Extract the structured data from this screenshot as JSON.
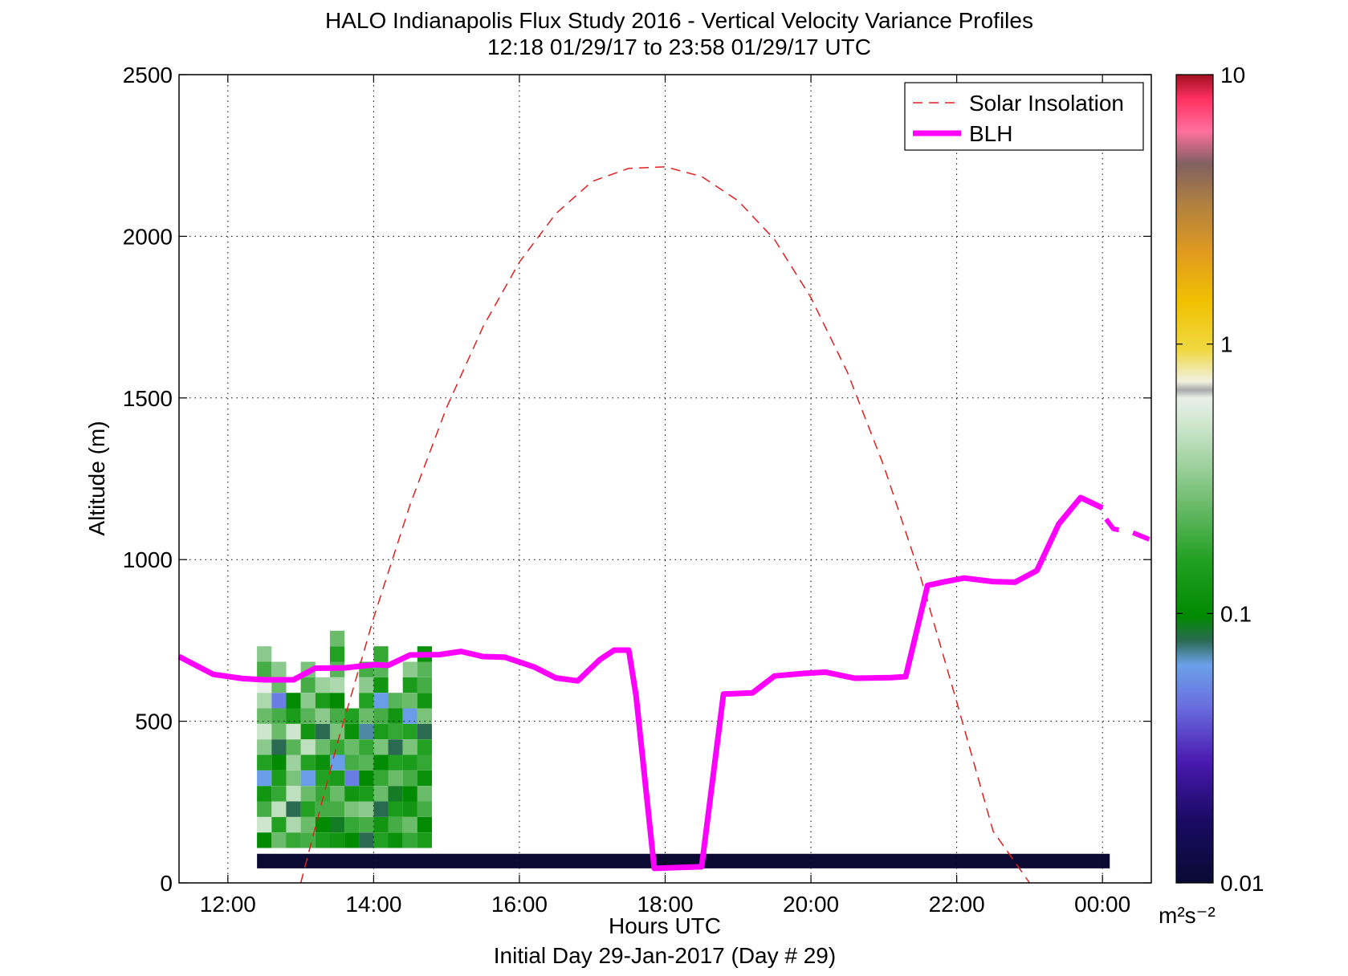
{
  "chart_data": {
    "type": "heatmap",
    "title_line1": "HALO Indianapolis Flux Study 2016 - Vertical Velocity Variance Profiles",
    "title_line2": "12:18 01/29/17 to 23:58 01/29/17  UTC",
    "xlabel": "Hours UTC",
    "xlabel2": "Initial Day 29-Jan-2017 (Day # 29)",
    "ylabel": "Altitude (m)",
    "x_ticks": [
      "12:00",
      "14:00",
      "16:00",
      "18:00",
      "20:00",
      "22:00",
      "00:00"
    ],
    "x_tick_hours": [
      12,
      14,
      16,
      18,
      20,
      22,
      24
    ],
    "xlim_hours": [
      11.33,
      24.67
    ],
    "y_ticks": [
      "0",
      "500",
      "1000",
      "1500",
      "2000",
      "2500"
    ],
    "y_tick_values": [
      0,
      500,
      1000,
      1500,
      2000,
      2500
    ],
    "ylim": [
      0,
      2500
    ],
    "grid": true,
    "legend_position": "top-right",
    "legend": [
      {
        "name": "Solar Insolation",
        "style": "dashed",
        "color": "#e02020"
      },
      {
        "name": "BLH",
        "style": "solid",
        "color": "#ff00ff"
      }
    ],
    "colorbar": {
      "scale": "log",
      "range": [
        0.01,
        10
      ],
      "tick_labels": [
        "10",
        "1",
        "0.1",
        "0.01"
      ],
      "tick_values": [
        10,
        1,
        0.1,
        0.01
      ],
      "unit": "m²s⁻²"
    },
    "variance_grid": {
      "first_column_hour": 12.5,
      "column_step_hours": 0.2,
      "first_row_altitude_m": 108,
      "row_step_m": 48,
      "log10_values": [
        [
          -1.0,
          -0.3,
          -0.7,
          -0.9,
          -1.2,
          -0.8,
          -0.5,
          -0.3,
          -0.6,
          -0.4,
          -0.2,
          -0.7,
          -0.5
        ],
        [
          -0.6,
          -0.8,
          -0.35,
          -0.75,
          -0.85,
          -1.0,
          -1.1,
          -0.6,
          -0.7,
          -1.3,
          -0.6,
          -0.5
        ],
        [
          -0.75,
          -0.4,
          -1.1,
          -0.35,
          -0.55,
          -0.45,
          -0.65,
          -0.3,
          -0.85,
          -1.0
        ],
        [
          -0.7,
          -0.6,
          -0.8,
          -0.6,
          -1.2,
          -0.8,
          -0.35,
          -0.9,
          -0.65,
          -0.5,
          -0.7,
          -0.55
        ],
        [
          -0.85,
          -1.0,
          -0.7,
          -0.75,
          -0.8,
          -0.95,
          -0.6,
          -1.1,
          -0.5,
          -0.85,
          -0.45
        ],
        [
          -0.9,
          -1.05,
          -0.7,
          -0.6,
          -0.85,
          -1.2,
          -0.75,
          -0.55,
          -0.7,
          -1.0,
          -0.4,
          -0.65,
          -0.8,
          -0.6
        ],
        [
          -1.0,
          -0.75,
          -0.55,
          -0.9,
          -1.3,
          -0.7,
          -0.6,
          -0.95,
          -0.8
        ],
        [
          -1.1,
          -0.7,
          -0.5,
          -0.85,
          -1.0,
          -0.65,
          -0.75,
          -1.15,
          -0.6,
          -0.8,
          -0.5,
          -0.7
        ],
        [
          -0.8,
          -0.9,
          -1.1,
          -0.6,
          -0.75,
          -1.0,
          -0.55,
          -0.85,
          -0.7,
          -1.2,
          -0.9,
          -0.65,
          -0.75
        ],
        [
          -0.95,
          -0.7,
          -0.85,
          -1.05,
          -0.6,
          -0.8,
          -1.1,
          -0.75,
          -0.9,
          -0.65
        ],
        [
          -0.75,
          -0.6,
          -0.9,
          -1.0,
          -0.7,
          -0.85,
          -0.55,
          -0.8,
          -1.2,
          -0.6,
          -0.85,
          -0.5
        ],
        [
          -0.85,
          -1.0,
          -0.7,
          -0.6,
          -0.95,
          -0.75,
          -0.8,
          -1.1,
          -0.55,
          -0.9,
          -0.7,
          -0.65,
          -0.95
        ]
      ]
    },
    "solar_insolation": {
      "x_hours": [
        13.0,
        13.5,
        14.0,
        14.5,
        15.0,
        15.5,
        16.0,
        16.5,
        17.0,
        17.5,
        18.0,
        18.5,
        19.0,
        19.5,
        20.0,
        20.5,
        21.0,
        21.5,
        22.0,
        22.5,
        23.0
      ],
      "y_altitude_m": [
        0,
        430,
        820,
        1170,
        1470,
        1720,
        1920,
        2070,
        2170,
        2210,
        2215,
        2185,
        2110,
        1990,
        1810,
        1580,
        1290,
        950,
        560,
        160,
        0
      ]
    },
    "blh": {
      "x_hours": [
        11.33,
        11.8,
        12.2,
        12.5,
        12.9,
        13.2,
        13.6,
        14.0,
        14.2,
        14.5,
        14.9,
        15.2,
        15.5,
        15.8,
        16.2,
        16.5,
        16.8,
        17.1,
        17.3,
        17.5,
        17.6,
        17.85,
        18.2,
        18.5,
        18.8,
        19.2,
        19.5,
        19.9,
        20.2,
        20.6,
        21.1,
        21.3,
        21.6,
        21.8,
        22.1,
        22.5,
        22.8,
        23.1,
        23.4,
        23.7,
        24.0
      ],
      "y_altitude_m": [
        700,
        645,
        632,
        628,
        628,
        664,
        665,
        675,
        673,
        705,
        706,
        716,
        700,
        698,
        668,
        634,
        625,
        690,
        720,
        720,
        580,
        45,
        48,
        50,
        584,
        588,
        640,
        648,
        652,
        633,
        635,
        638,
        920,
        930,
        943,
        932,
        930,
        966,
        1110,
        1192,
        1160
      ]
    },
    "blh_extension": {
      "x_hours": [
        24.05,
        24.15,
        24.4,
        24.67
      ],
      "y_altitude_m": [
        1125,
        1095,
        1085,
        1060
      ]
    }
  }
}
